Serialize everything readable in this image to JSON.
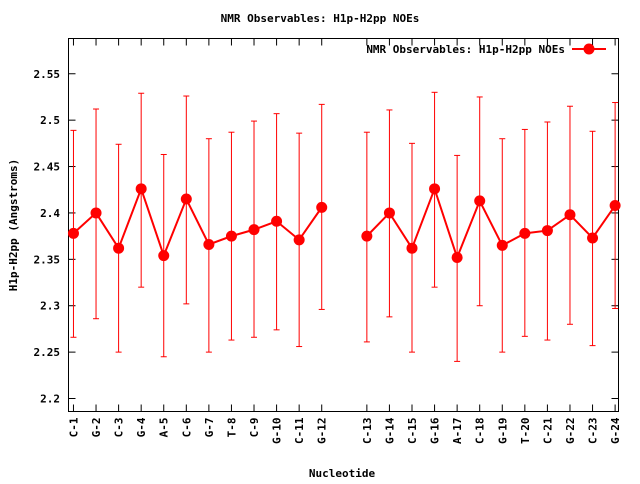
{
  "chart_data": {
    "type": "line",
    "title": "NMR Observables: H1p-H2pp NOEs",
    "xlabel": "Nucleotide",
    "ylabel": "H1p-H2pp (Angstroms)",
    "legend": {
      "label": "NMR Observables: H1p-H2pp NOEs",
      "placement": "top-right"
    },
    "ylim": [
      2.186,
      2.588
    ],
    "xlim": [
      0.78,
      25.15
    ],
    "yticks": [
      "2.2",
      "2.25",
      "2.3",
      "2.35",
      "2.4",
      "2.45",
      "2.5",
      "2.55"
    ],
    "ytick_values": [
      2.2,
      2.25,
      2.3,
      2.35,
      2.4,
      2.45,
      2.5,
      2.55
    ],
    "series": [
      {
        "name": "NMR Observables: H1p-H2pp NOEs",
        "color": "#ff0000",
        "segments": [
          {
            "labels": [
              "C-1",
              "G-2",
              "C-3",
              "G-4",
              "A-5",
              "C-6",
              "G-7",
              "T-8",
              "C-9",
              "G-10",
              "C-11",
              "G-12"
            ],
            "x": [
              1,
              2,
              3,
              4,
              5,
              6,
              7,
              8,
              9,
              10,
              11,
              12
            ],
            "y": [
              2.378,
              2.4,
              2.362,
              2.426,
              2.354,
              2.415,
              2.366,
              2.375,
              2.382,
              2.391,
              2.371,
              2.406
            ],
            "ymin": [
              2.266,
              2.286,
              2.25,
              2.32,
              2.245,
              2.302,
              2.25,
              2.263,
              2.266,
              2.274,
              2.256,
              2.296
            ],
            "ymax": [
              2.489,
              2.512,
              2.474,
              2.529,
              2.463,
              2.526,
              2.48,
              2.487,
              2.499,
              2.507,
              2.486,
              2.517
            ]
          },
          {
            "labels": [
              "C-13",
              "G-14",
              "C-15",
              "G-16",
              "A-17",
              "C-18",
              "G-19",
              "T-20",
              "C-21",
              "G-22",
              "C-23",
              "G-24"
            ],
            "x": [
              14,
              15,
              16,
              17,
              18,
              19,
              20,
              21,
              22,
              23,
              24,
              25
            ],
            "y": [
              2.375,
              2.4,
              2.362,
              2.426,
              2.352,
              2.413,
              2.365,
              2.378,
              2.381,
              2.398,
              2.373,
              2.408
            ],
            "ymin": [
              2.261,
              2.288,
              2.25,
              2.32,
              2.24,
              2.3,
              2.25,
              2.267,
              2.263,
              2.28,
              2.257,
              2.297
            ],
            "ymax": [
              2.487,
              2.511,
              2.475,
              2.53,
              2.462,
              2.525,
              2.48,
              2.49,
              2.498,
              2.515,
              2.488,
              2.519
            ]
          }
        ]
      }
    ]
  }
}
